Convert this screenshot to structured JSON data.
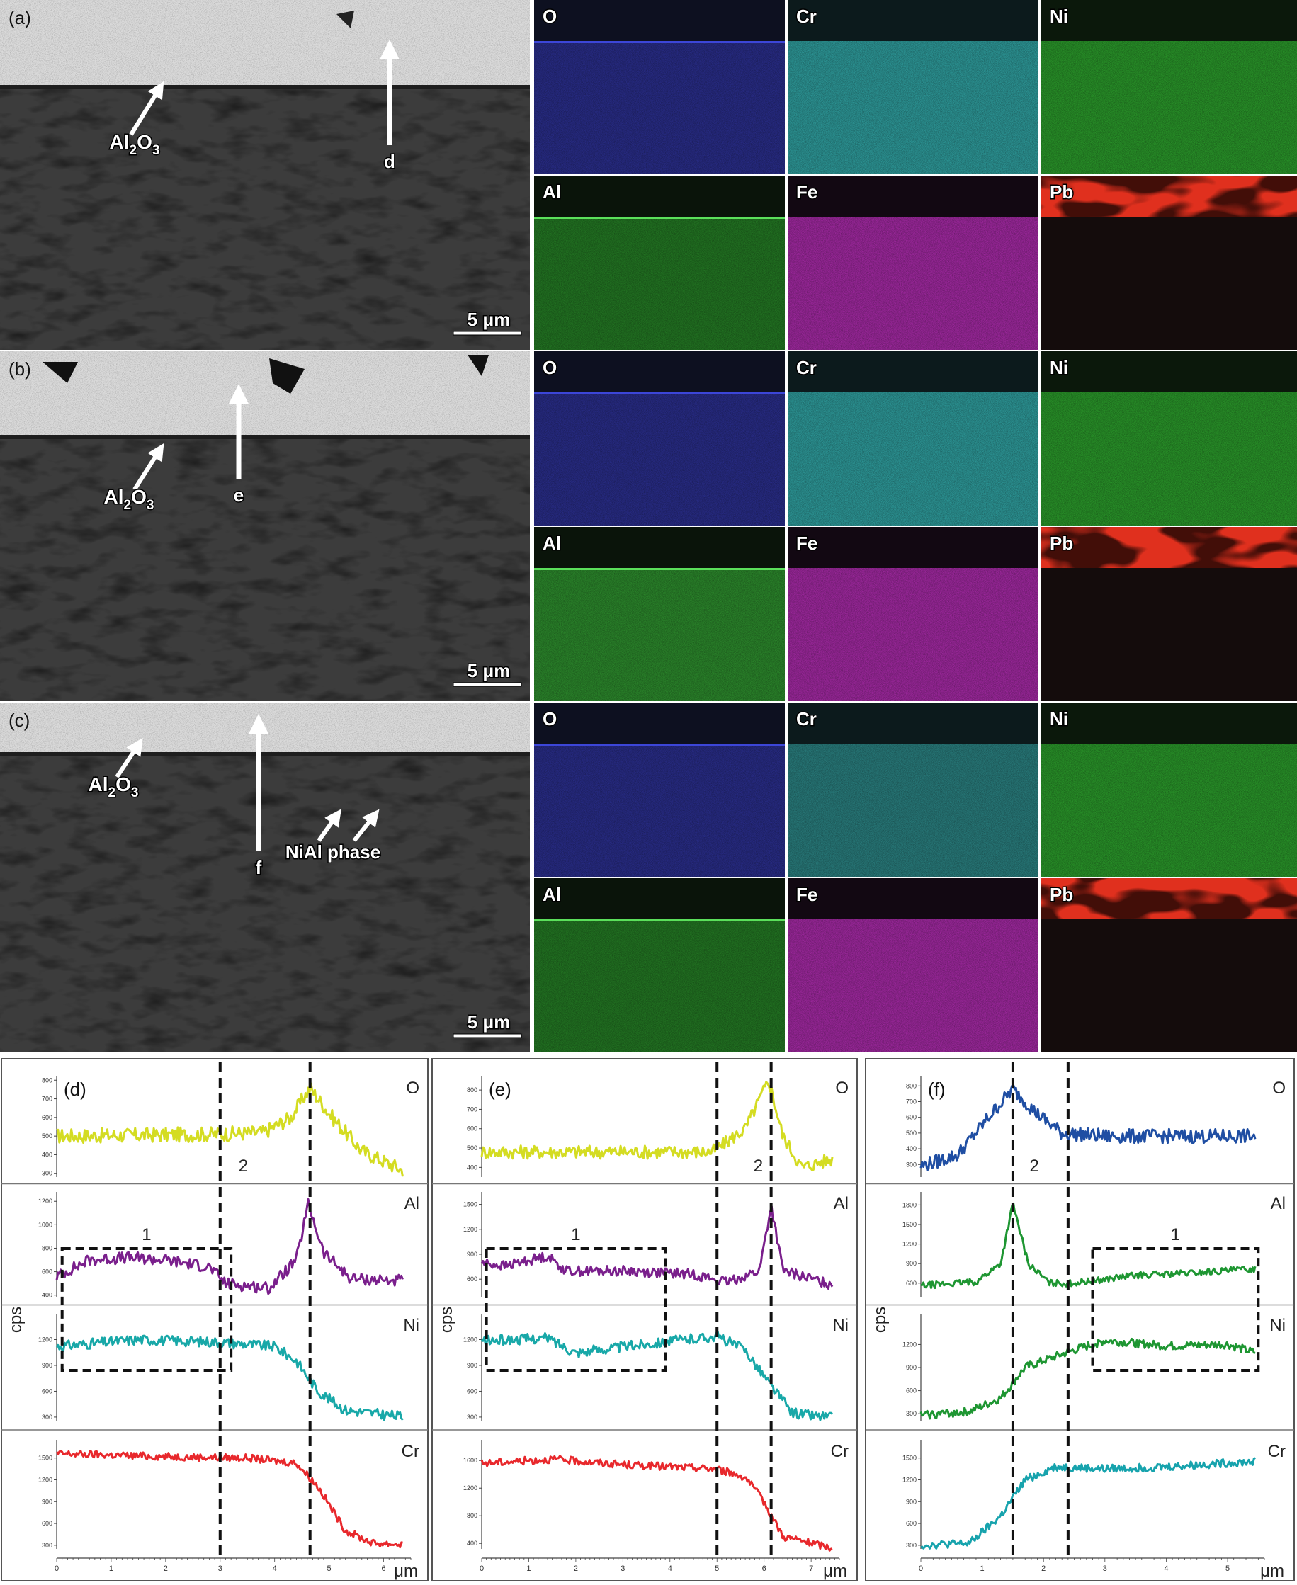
{
  "rows": [
    {
      "panel_label": "(a)",
      "oxide_label": {
        "base": "Al",
        "sub1": "2",
        "mid": "O",
        "sub2": "3"
      },
      "arrow_label": "d",
      "extra_label": "",
      "scale_bar": "5 μm",
      "maps": [
        {
          "element": "O",
          "color": "#2a2e8c",
          "dark": "#0d1020",
          "pb": false
        },
        {
          "element": "Cr",
          "color": "#2f9e9e",
          "dark": "#0c1a1c",
          "pb": false
        },
        {
          "element": "Ni",
          "color": "#2b9a2b",
          "dark": "#0b180b",
          "pb": false
        },
        {
          "element": "Al",
          "color": "#247a24",
          "dark": "#0a140a",
          "pb": false
        },
        {
          "element": "Fe",
          "color": "#a52aa5",
          "dark": "#120812",
          "pb": false
        },
        {
          "element": "Pb",
          "color": "#e0301e",
          "dark": "#140c0c",
          "pb": true
        }
      ]
    },
    {
      "panel_label": "(b)",
      "oxide_label": {
        "base": "Al",
        "sub1": "2",
        "mid": "O",
        "sub2": "3"
      },
      "arrow_label": "e",
      "extra_label": "",
      "scale_bar": "5 μm",
      "maps": [
        {
          "element": "O",
          "color": "#2a2e8c",
          "dark": "#0d1020",
          "pb": false
        },
        {
          "element": "Cr",
          "color": "#2f9e9e",
          "dark": "#0c1a1c",
          "pb": false
        },
        {
          "element": "Ni",
          "color": "#2b9a2b",
          "dark": "#0b180b",
          "pb": false
        },
        {
          "element": "Al",
          "color": "#2d8c2d",
          "dark": "#0a140a",
          "pb": false
        },
        {
          "element": "Fe",
          "color": "#a52aa5",
          "dark": "#120812",
          "pb": false
        },
        {
          "element": "Pb",
          "color": "#e0301e",
          "dark": "#140c0c",
          "pb": true
        }
      ]
    },
    {
      "panel_label": "(c)",
      "oxide_label": {
        "base": "Al",
        "sub1": "2",
        "mid": "O",
        "sub2": "3"
      },
      "arrow_label": "f",
      "extra_label": "NiAl phase",
      "scale_bar": "5 μm",
      "maps": [
        {
          "element": "O",
          "color": "#2a2e8c",
          "dark": "#0d1020",
          "pb": false
        },
        {
          "element": "Cr",
          "color": "#2a8080",
          "dark": "#0c1a1c",
          "pb": false
        },
        {
          "element": "Ni",
          "color": "#2b9a2b",
          "dark": "#0b180b",
          "pb": false
        },
        {
          "element": "Al",
          "color": "#247a24",
          "dark": "#0a140a",
          "pb": false
        },
        {
          "element": "Fe",
          "color": "#a52aa5",
          "dark": "#120812",
          "pb": false
        },
        {
          "element": "Pb",
          "color": "#e0301e",
          "dark": "#140c0c",
          "pb": true
        }
      ]
    }
  ],
  "line_scan_common": {
    "ylabel": "cps",
    "xlabel": "μm"
  },
  "chart_data": [
    {
      "type": "line",
      "panel_label": "(d)",
      "xlim": [
        0,
        6.5
      ],
      "x_ticks": [
        0,
        1,
        2,
        3,
        4,
        5,
        6
      ],
      "dashed_lines_x": [
        3.0,
        4.65
      ],
      "box": {
        "label": "1",
        "x": [
          0.1,
          3.2
        ]
      },
      "region_label": "2",
      "series": [
        {
          "name": "O",
          "color": "#d4dc22",
          "ylim": [
            280,
            820
          ],
          "ticks": [
            300,
            400,
            500,
            600,
            700,
            800
          ],
          "profile": [
            [
              0,
              500
            ],
            [
              2.9,
              510
            ],
            [
              3.8,
              520
            ],
            [
              4.3,
              600
            ],
            [
              4.65,
              760
            ],
            [
              5.0,
              620
            ],
            [
              5.6,
              420
            ],
            [
              6.4,
              310
            ]
          ],
          "noise": 40
        },
        {
          "name": "Al",
          "color": "#7a1f8c",
          "ylim": [
            380,
            1280
          ],
          "ticks": [
            400,
            600,
            800,
            1000,
            1200
          ],
          "profile": [
            [
              0,
              560
            ],
            [
              0.6,
              700
            ],
            [
              1.3,
              720
            ],
            [
              2.0,
              700
            ],
            [
              2.8,
              640
            ],
            [
              3.1,
              500
            ],
            [
              3.9,
              460
            ],
            [
              4.4,
              700
            ],
            [
              4.62,
              1180
            ],
            [
              4.9,
              760
            ],
            [
              5.4,
              540
            ],
            [
              6.4,
              520
            ]
          ],
          "noise": 50
        },
        {
          "name": "Ni",
          "color": "#18a8a8",
          "ylim": [
            250,
            1500
          ],
          "ticks": [
            300,
            600,
            900,
            1200
          ],
          "profile": [
            [
              0,
              1120
            ],
            [
              1.5,
              1200
            ],
            [
              3.0,
              1170
            ],
            [
              4.0,
              1120
            ],
            [
              4.4,
              950
            ],
            [
              4.8,
              600
            ],
            [
              5.3,
              380
            ],
            [
              6.4,
              300
            ]
          ],
          "noise": 60
        },
        {
          "name": "Cr",
          "color": "#e8282c",
          "ylim": [
            250,
            1750
          ],
          "ticks": [
            300,
            600,
            900,
            1200,
            1500
          ],
          "profile": [
            [
              0,
              1560
            ],
            [
              2.0,
              1520
            ],
            [
              3.5,
              1500
            ],
            [
              4.4,
              1430
            ],
            [
              4.8,
              1100
            ],
            [
              5.3,
              500
            ],
            [
              5.8,
              330
            ],
            [
              6.4,
              310
            ]
          ],
          "noise": 50
        }
      ]
    },
    {
      "type": "line",
      "panel_label": "(e)",
      "xlim": [
        0,
        7.6
      ],
      "x_ticks": [
        0,
        1,
        2,
        3,
        4,
        5,
        6,
        7
      ],
      "dashed_lines_x": [
        5.0,
        6.15
      ],
      "box": {
        "label": "1",
        "x": [
          0.1,
          3.9
        ]
      },
      "region_label": "2",
      "series": [
        {
          "name": "O",
          "color": "#d4dc22",
          "ylim": [
            350,
            870
          ],
          "ticks": [
            400,
            500,
            600,
            700,
            800
          ],
          "profile": [
            [
              0,
              480
            ],
            [
              2.0,
              480
            ],
            [
              4.9,
              480
            ],
            [
              5.6,
              600
            ],
            [
              6.1,
              850
            ],
            [
              6.4,
              560
            ],
            [
              6.8,
              400
            ],
            [
              7.4,
              440
            ]
          ],
          "noise": 35
        },
        {
          "name": "Al",
          "color": "#7a1f8c",
          "ylim": [
            380,
            1650
          ],
          "ticks": [
            600,
            900,
            1200,
            1500
          ],
          "profile": [
            [
              0,
              800
            ],
            [
              0.5,
              760
            ],
            [
              1.4,
              880
            ],
            [
              1.8,
              700
            ],
            [
              3.0,
              700
            ],
            [
              4.5,
              660
            ],
            [
              5.2,
              560
            ],
            [
              5.9,
              700
            ],
            [
              6.15,
              1480
            ],
            [
              6.4,
              700
            ],
            [
              7.4,
              540
            ]
          ],
          "noise": 60
        },
        {
          "name": "Ni",
          "color": "#18a8a8",
          "ylim": [
            250,
            1500
          ],
          "ticks": [
            300,
            600,
            900,
            1200
          ],
          "profile": [
            [
              0,
              1180
            ],
            [
              1.4,
              1220
            ],
            [
              2.0,
              1050
            ],
            [
              3.5,
              1150
            ],
            [
              5.0,
              1240
            ],
            [
              5.6,
              1080
            ],
            [
              6.1,
              700
            ],
            [
              6.6,
              350
            ],
            [
              7.4,
              300
            ]
          ],
          "noise": 60
        },
        {
          "name": "Cr",
          "color": "#e8282c",
          "ylim": [
            320,
            1900
          ],
          "ticks": [
            400,
            800,
            1200,
            1600
          ],
          "profile": [
            [
              0,
              1560
            ],
            [
              1.5,
              1620
            ],
            [
              3.0,
              1540
            ],
            [
              5.0,
              1480
            ],
            [
              5.6,
              1360
            ],
            [
              6.0,
              1000
            ],
            [
              6.4,
              500
            ],
            [
              7.4,
              340
            ]
          ],
          "noise": 55
        }
      ]
    },
    {
      "type": "line",
      "panel_label": "(f)",
      "xlim": [
        0,
        5.6
      ],
      "x_ticks": [
        0,
        1,
        2,
        3,
        4,
        5
      ],
      "dashed_lines_x": [
        1.5,
        2.4
      ],
      "box": {
        "label": "1",
        "x": [
          2.8,
          5.5
        ]
      },
      "region_label": "2",
      "series": [
        {
          "name": "O",
          "color": "#1f4ea3",
          "ylim": [
            220,
            860
          ],
          "ticks": [
            300,
            400,
            500,
            600,
            700,
            800
          ],
          "profile": [
            [
              0,
              290
            ],
            [
              0.6,
              360
            ],
            [
              1.1,
              600
            ],
            [
              1.5,
              780
            ],
            [
              1.9,
              620
            ],
            [
              2.3,
              500
            ],
            [
              3.0,
              480
            ],
            [
              5.4,
              480
            ]
          ],
          "noise": 45
        },
        {
          "name": "Al",
          "color": "#1e9632",
          "ylim": [
            380,
            2000
          ],
          "ticks": [
            600,
            900,
            1200,
            1500,
            1800
          ],
          "profile": [
            [
              0,
              560
            ],
            [
              0.9,
              620
            ],
            [
              1.3,
              900
            ],
            [
              1.5,
              1820
            ],
            [
              1.75,
              900
            ],
            [
              2.1,
              600
            ],
            [
              2.5,
              600
            ],
            [
              3.5,
              720
            ],
            [
              4.5,
              760
            ],
            [
              5.4,
              820
            ]
          ],
          "noise": 50
        },
        {
          "name": "Ni",
          "color": "#1e9632",
          "ylim": [
            200,
            1600
          ],
          "ticks": [
            300,
            600,
            900,
            1200
          ],
          "profile": [
            [
              0,
              280
            ],
            [
              0.8,
              330
            ],
            [
              1.3,
              500
            ],
            [
              1.7,
              900
            ],
            [
              2.4,
              1100
            ],
            [
              3.0,
              1250
            ],
            [
              4.0,
              1180
            ],
            [
              5.0,
              1200
            ],
            [
              5.4,
              1100
            ]
          ],
          "noise": 55
        },
        {
          "name": "Cr",
          "color": "#17a3ad",
          "ylim": [
            250,
            1750
          ],
          "ticks": [
            300,
            600,
            900,
            1200,
            1500
          ],
          "profile": [
            [
              0,
              300
            ],
            [
              0.8,
              330
            ],
            [
              1.3,
              700
            ],
            [
              1.7,
              1200
            ],
            [
              2.2,
              1380
            ],
            [
              3.0,
              1350
            ],
            [
              4.0,
              1380
            ],
            [
              5.4,
              1450
            ]
          ],
          "noise": 55
        }
      ]
    }
  ]
}
